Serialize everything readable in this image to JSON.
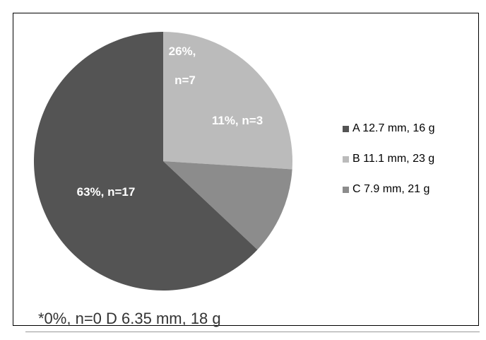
{
  "chart_data": {
    "type": "pie",
    "slices": [
      {
        "name": "A 12.7 mm, 16 g",
        "percent": 63,
        "n": 17,
        "label": "63%, n=17",
        "color": "#545454"
      },
      {
        "name": "B 11.1 mm, 23 g",
        "percent": 26,
        "n": 7,
        "label_line1": "26%,",
        "label_line2": "n=7",
        "color": "#bbbbbb"
      },
      {
        "name": "C 7.9 mm, 21 g",
        "percent": 11,
        "n": 3,
        "label": "11%, n=3",
        "color": "#8c8c8c"
      }
    ],
    "slice_order": [
      "B 11.1 mm, 23 g",
      "C 7.9 mm, 21 g",
      "A 12.7 mm, 16 g"
    ],
    "legend_position": "right",
    "footnote": "*0%, n=0 D 6.35 mm, 18 g"
  }
}
